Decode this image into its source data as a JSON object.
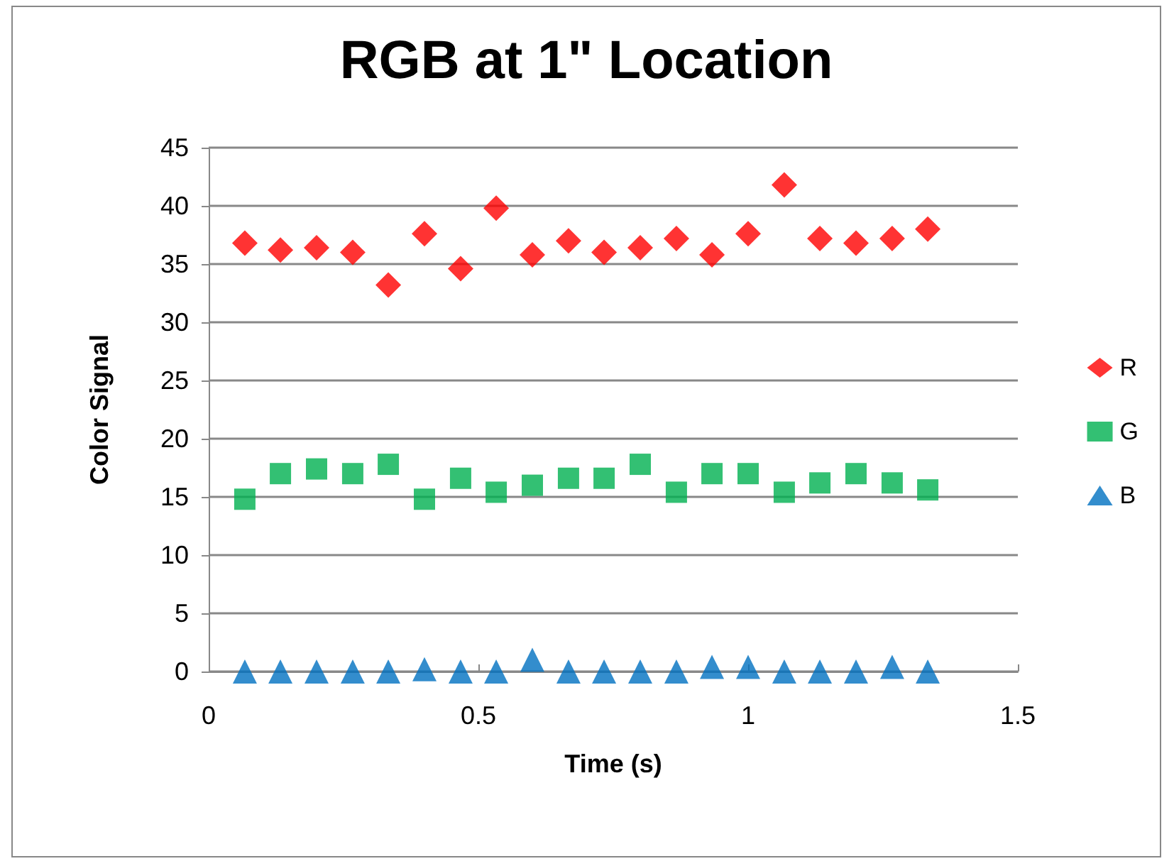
{
  "chart_data": {
    "type": "scatter",
    "title": "RGB at 1\" Location",
    "xlabel": "Time (s)",
    "ylabel": "Color Signal",
    "x": [
      0.067,
      0.133,
      0.2,
      0.267,
      0.333,
      0.4,
      0.467,
      0.533,
      0.6,
      0.667,
      0.733,
      0.8,
      0.867,
      0.933,
      1.0,
      1.067,
      1.133,
      1.2,
      1.267,
      1.333
    ],
    "series": [
      {
        "name": "R",
        "color": "#ff0000",
        "marker": "diamond",
        "values": [
          36.8,
          36.2,
          36.4,
          36.0,
          33.2,
          37.6,
          34.6,
          39.8,
          35.8,
          37.0,
          36.0,
          36.4,
          37.2,
          35.8,
          37.6,
          41.8,
          37.2,
          36.8,
          37.2,
          38.0
        ]
      },
      {
        "name": "G",
        "color": "#00b050",
        "marker": "square",
        "values": [
          14.8,
          17.0,
          17.4,
          17.0,
          17.8,
          14.8,
          16.6,
          15.4,
          16.0,
          16.6,
          16.6,
          17.8,
          15.4,
          17.0,
          17.0,
          15.4,
          16.2,
          17.0,
          16.2,
          15.6
        ]
      },
      {
        "name": "B",
        "color": "#0070c0",
        "marker": "triangle",
        "values": [
          0,
          0,
          0,
          0,
          0,
          0.2,
          0,
          0,
          1.0,
          0,
          0,
          0,
          0,
          0.4,
          0.4,
          0,
          0,
          0,
          0.4,
          0
        ]
      }
    ],
    "xlim": [
      0,
      1.5
    ],
    "xticks": [
      0,
      0.5,
      1,
      1.5
    ],
    "ylim": [
      0,
      45
    ],
    "yticks": [
      0,
      5,
      10,
      15,
      20,
      25,
      30,
      35,
      40,
      45
    ],
    "grid": "y",
    "legend": "right"
  }
}
